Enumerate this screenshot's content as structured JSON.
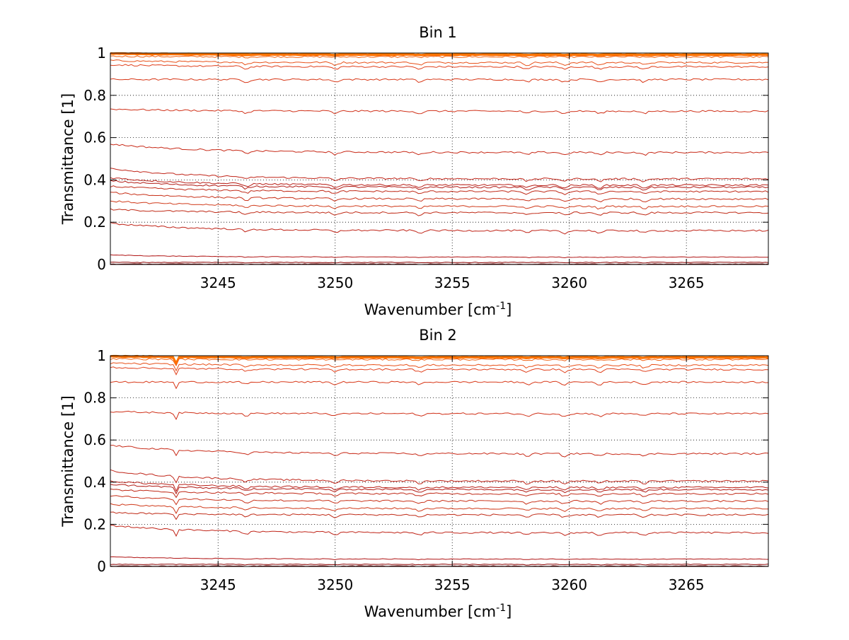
{
  "figure": {
    "background": "#ffffff"
  },
  "chart_data": [
    {
      "type": "line",
      "title": "Bin 1",
      "xlabel": "Wavenumber [cm",
      "xlabel_sup": "-1",
      "xlabel_end": "]",
      "ylabel": "Transmittance [1]",
      "xlim": [
        3240.4,
        3268.5
      ],
      "ylim": [
        0,
        1
      ],
      "xticks": [
        3245,
        3250,
        3255,
        3260,
        3265
      ],
      "yticks": [
        0,
        0.2,
        0.4,
        0.6,
        0.8,
        1
      ],
      "ytick_labels": [
        "0",
        "0.2",
        "0.4",
        "0.6",
        "0.8",
        "1"
      ],
      "grid": true,
      "grid_style": "dotted",
      "legend": "none",
      "colors": {
        "high": "#ff6a00",
        "mid": "#e0401c",
        "low": "#b01010",
        "dark": "#8a0000"
      },
      "dip": {
        "x": 3243.2,
        "depth": 0
      },
      "series": [
        {
          "start": 1.0,
          "end": 0.995,
          "color": "#ff7a00"
        },
        {
          "start": 0.995,
          "end": 0.99,
          "color": "#ff7000"
        },
        {
          "start": 0.985,
          "end": 0.982,
          "color": "#f06010"
        },
        {
          "start": 0.965,
          "end": 0.955,
          "color": "#e85018"
        },
        {
          "start": 0.945,
          "end": 0.935,
          "color": "#e0401c"
        },
        {
          "start": 0.875,
          "end": 0.875,
          "color": "#d83818"
        },
        {
          "start": 0.735,
          "end": 0.725,
          "color": "#d03018"
        },
        {
          "start": 0.57,
          "end": 0.53,
          "color": "#c82a18"
        },
        {
          "start": 0.455,
          "end": 0.405,
          "color": "#c02418"
        },
        {
          "start": 0.41,
          "end": 0.375,
          "color": "#b81e16"
        },
        {
          "start": 0.395,
          "end": 0.365,
          "color": "#b01a14"
        },
        {
          "start": 0.37,
          "end": 0.345,
          "color": "#c02a18"
        },
        {
          "start": 0.34,
          "end": 0.31,
          "color": "#c83018"
        },
        {
          "start": 0.3,
          "end": 0.275,
          "color": "#d03a1a"
        },
        {
          "start": 0.26,
          "end": 0.245,
          "color": "#c02a16"
        },
        {
          "start": 0.195,
          "end": 0.16,
          "color": "#c02418"
        },
        {
          "start": 0.045,
          "end": 0.035,
          "color": "#b01414"
        },
        {
          "start": 0.01,
          "end": 0.01,
          "color": "#8a0000"
        },
        {
          "start": 0.002,
          "end": 0.002,
          "color": "#700000"
        }
      ]
    },
    {
      "type": "line",
      "title": "Bin 2",
      "xlabel": "Wavenumber [cm",
      "xlabel_sup": "-1",
      "xlabel_end": "]",
      "ylabel": "Transmittance [1]",
      "xlim": [
        3240.4,
        3268.5
      ],
      "ylim": [
        0,
        1
      ],
      "xticks": [
        3245,
        3250,
        3255,
        3260,
        3265
      ],
      "yticks": [
        0,
        0.2,
        0.4,
        0.6,
        0.8,
        1
      ],
      "ytick_labels": [
        "0",
        "0.2",
        "0.4",
        "0.6",
        "0.8",
        "1"
      ],
      "grid": true,
      "grid_style": "dotted",
      "legend": "none",
      "colors": {
        "high": "#ff6a00",
        "mid": "#e0401c",
        "low": "#b01010",
        "dark": "#8a0000"
      },
      "dip": {
        "x": 3243.2,
        "depth": 0.03
      },
      "series": [
        {
          "start": 1.0,
          "end": 0.995,
          "color": "#ff7a00"
        },
        {
          "start": 0.995,
          "end": 0.99,
          "color": "#ff7000"
        },
        {
          "start": 0.985,
          "end": 0.982,
          "color": "#f06010"
        },
        {
          "start": 0.965,
          "end": 0.955,
          "color": "#e85018"
        },
        {
          "start": 0.945,
          "end": 0.935,
          "color": "#e0401c"
        },
        {
          "start": 0.875,
          "end": 0.875,
          "color": "#d83818"
        },
        {
          "start": 0.735,
          "end": 0.725,
          "color": "#d03018"
        },
        {
          "start": 0.575,
          "end": 0.535,
          "color": "#c82a18"
        },
        {
          "start": 0.455,
          "end": 0.405,
          "color": "#c02418"
        },
        {
          "start": 0.405,
          "end": 0.375,
          "color": "#b81e16"
        },
        {
          "start": 0.39,
          "end": 0.365,
          "color": "#b01a14"
        },
        {
          "start": 0.365,
          "end": 0.345,
          "color": "#c02a18"
        },
        {
          "start": 0.335,
          "end": 0.31,
          "color": "#c83018"
        },
        {
          "start": 0.295,
          "end": 0.275,
          "color": "#d03a1a"
        },
        {
          "start": 0.255,
          "end": 0.245,
          "color": "#c02a16"
        },
        {
          "start": 0.195,
          "end": 0.16,
          "color": "#c02418"
        },
        {
          "start": 0.045,
          "end": 0.035,
          "color": "#b01414"
        },
        {
          "start": 0.01,
          "end": 0.01,
          "color": "#8a0000"
        },
        {
          "start": 0.002,
          "end": 0.002,
          "color": "#700000"
        }
      ]
    }
  ]
}
